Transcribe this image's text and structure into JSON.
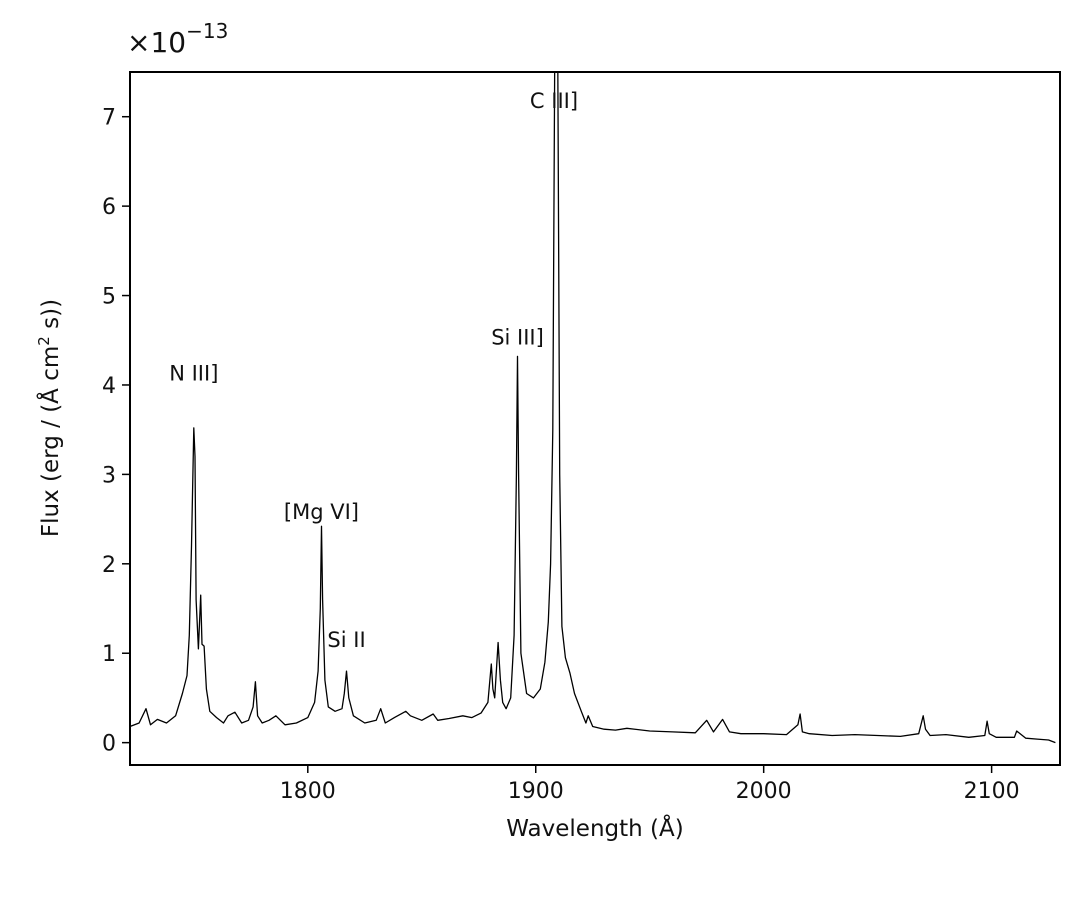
{
  "chart_data": {
    "type": "line",
    "title": "",
    "xlabel": "Wavelength (Å)",
    "ylabel_parts": {
      "before": "Flux (erg / (Å cm",
      "sup": "2",
      "after": " s))"
    },
    "y_offset_text": {
      "base": "×10",
      "exponent": "−13"
    },
    "xlim": [
      1722,
      2130
    ],
    "ylim": [
      -0.25,
      7.5
    ],
    "y_scale_note": "values in units of 1e-13",
    "xticks": [
      1800,
      1900,
      2000,
      2100
    ],
    "yticks": [
      0,
      1,
      2,
      3,
      4,
      5,
      6,
      7
    ],
    "grid": false,
    "legend": "none",
    "line_color": "#000000",
    "annotations": [
      {
        "text": "N III]",
        "x": 1750,
        "y": 4.05
      },
      {
        "text": "[Mg VI]",
        "x": 1806,
        "y": 2.5
      },
      {
        "text": "Si II",
        "x": 1817,
        "y": 1.07
      },
      {
        "text": "Si III]",
        "x": 1892,
        "y": 4.45
      },
      {
        "text": "C III]",
        "x": 1908,
        "y": 7.1
      }
    ],
    "series": [
      {
        "x": [
          1722,
          1726,
          1729,
          1731,
          1734,
          1738,
          1742,
          1745,
          1747,
          1748,
          1749,
          1750,
          1750.5,
          1751,
          1752,
          1753,
          1753.6,
          1754.5,
          1755.5,
          1757,
          1760,
          1763,
          1765,
          1768,
          1771,
          1774,
          1776,
          1777,
          1778,
          1780,
          1783,
          1786,
          1790,
          1795,
          1800,
          1803,
          1804.5,
          1805.5,
          1806,
          1806.5,
          1807.5,
          1809,
          1812,
          1815,
          1816,
          1817,
          1818,
          1820,
          1825,
          1830,
          1832,
          1834,
          1838,
          1843,
          1845,
          1850,
          1855,
          1857,
          1862,
          1868,
          1872,
          1876,
          1879,
          1880.5,
          1881.2,
          1882,
          1883.5,
          1884.5,
          1885.5,
          1887,
          1889,
          1890.5,
          1891.5,
          1892,
          1892.5,
          1893.5,
          1896,
          1899,
          1902,
          1904,
          1905.5,
          1906.5,
          1907.5,
          1908.3,
          1909,
          1909.7,
          1910.5,
          1911.5,
          1913,
          1915,
          1917,
          1920,
          1922,
          1923,
          1925,
          1930,
          1935,
          1940,
          1950,
          1960,
          1970,
          1975,
          1978,
          1982,
          1985,
          1990,
          2000,
          2010,
          2015,
          2016,
          2017,
          2020,
          2030,
          2040,
          2050,
          2060,
          2068,
          2070,
          2071,
          2073,
          2080,
          2090,
          2097,
          2098,
          2099,
          2102,
          2110,
          2111,
          2115,
          2120,
          2125,
          2128
        ],
        "y": [
          0.18,
          0.22,
          0.38,
          0.2,
          0.26,
          0.22,
          0.3,
          0.55,
          0.75,
          1.2,
          2.2,
          3.52,
          3.2,
          1.6,
          1.05,
          1.65,
          1.1,
          1.08,
          0.6,
          0.35,
          0.28,
          0.22,
          0.3,
          0.34,
          0.22,
          0.25,
          0.4,
          0.68,
          0.3,
          0.22,
          0.25,
          0.3,
          0.2,
          0.22,
          0.28,
          0.45,
          0.8,
          1.5,
          2.42,
          1.6,
          0.7,
          0.4,
          0.35,
          0.38,
          0.55,
          0.8,
          0.5,
          0.3,
          0.22,
          0.25,
          0.38,
          0.22,
          0.28,
          0.35,
          0.3,
          0.25,
          0.32,
          0.25,
          0.27,
          0.3,
          0.28,
          0.33,
          0.45,
          0.88,
          0.6,
          0.5,
          1.12,
          0.7,
          0.45,
          0.38,
          0.5,
          1.2,
          3.0,
          4.32,
          3.0,
          1.0,
          0.55,
          0.5,
          0.6,
          0.9,
          1.35,
          2.0,
          3.5,
          7.6,
          7.6,
          7.6,
          3.0,
          1.3,
          0.95,
          0.78,
          0.55,
          0.35,
          0.22,
          0.3,
          0.18,
          0.15,
          0.14,
          0.16,
          0.13,
          0.12,
          0.11,
          0.25,
          0.12,
          0.26,
          0.12,
          0.1,
          0.1,
          0.09,
          0.2,
          0.32,
          0.12,
          0.1,
          0.08,
          0.09,
          0.08,
          0.07,
          0.1,
          0.3,
          0.15,
          0.08,
          0.09,
          0.06,
          0.08,
          0.24,
          0.1,
          0.06,
          0.06,
          0.13,
          0.05,
          0.04,
          0.03,
          0.0
        ]
      }
    ]
  }
}
